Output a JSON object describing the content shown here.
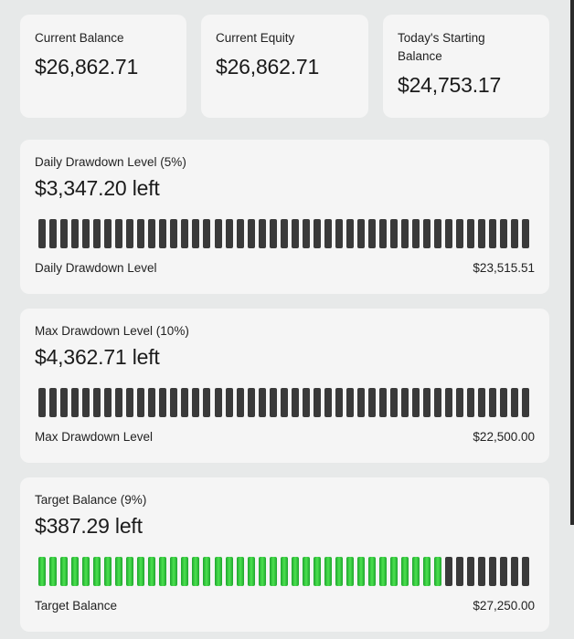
{
  "summary": [
    {
      "label": "Current Balance",
      "value": "$26,862.71"
    },
    {
      "label": "Current Equity",
      "value": "$26,862.71"
    },
    {
      "label": "Today's Starting Balance",
      "value": "$24,753.17"
    }
  ],
  "daily_drawdown": {
    "title": "Daily Drawdown Level (5%)",
    "left": "$3,347.20 left",
    "footer_label": "Daily Drawdown Level",
    "footer_value": "$23,515.51",
    "segments_total": 45,
    "segments_filled": 0,
    "fill_color": "#3a3a3a"
  },
  "max_drawdown": {
    "title": "Max Drawdown Level (10%)",
    "left": "$4,362.71 left",
    "footer_label": "Max Drawdown Level",
    "footer_value": "$22,500.00",
    "segments_total": 45,
    "segments_filled": 0,
    "fill_color": "#3a3a3a"
  },
  "target": {
    "title": "Target Balance (9%)",
    "left": "$387.29 left",
    "footer_label": "Target Balance",
    "footer_value": "$27,250.00",
    "segments_total": 45,
    "segments_filled": 37,
    "fill_color": "#2ec93a"
  }
}
